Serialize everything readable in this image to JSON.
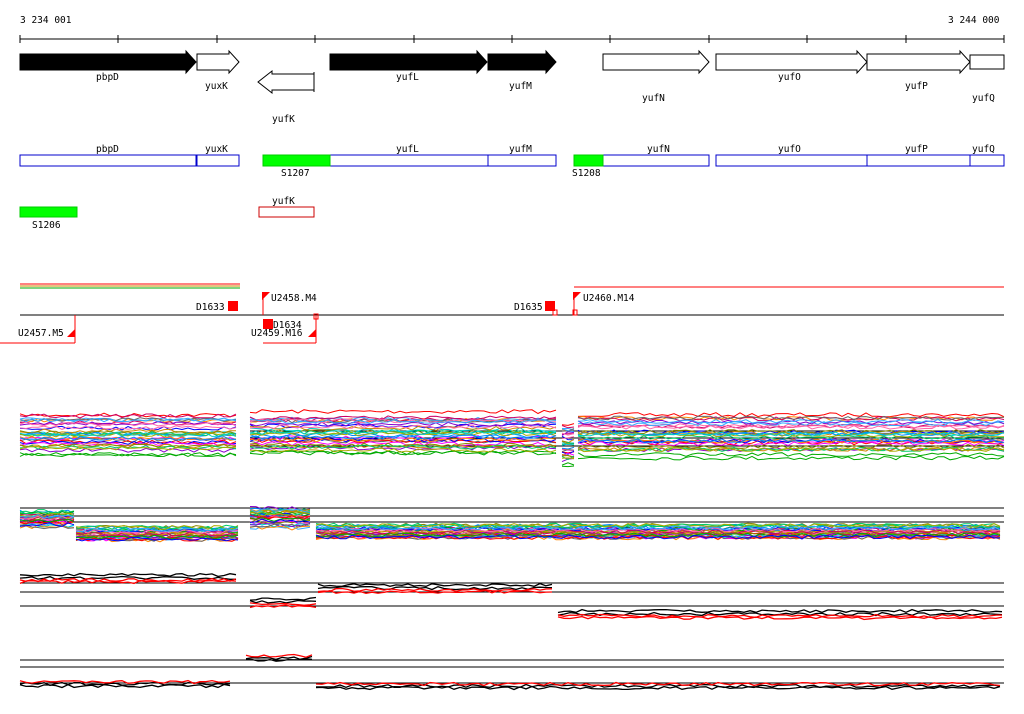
{
  "ruler": {
    "start_label": "3 234 001",
    "end_label": "3 244 000"
  },
  "genes_strand": [
    {
      "name": "pbpD",
      "strand": "+",
      "filled": true
    },
    {
      "name": "yuxK",
      "strand": "+",
      "filled": false
    },
    {
      "name": "yufK",
      "strand": "-",
      "filled": false
    },
    {
      "name": "yufL",
      "strand": "+",
      "filled": true
    },
    {
      "name": "yufM",
      "strand": "+",
      "filled": true
    },
    {
      "name": "yufN",
      "strand": "+",
      "filled": false
    },
    {
      "name": "yufO",
      "strand": "+",
      "filled": false
    },
    {
      "name": "yufP",
      "strand": "+",
      "filled": false
    },
    {
      "name": "yufQ",
      "strand": "+",
      "filled": false
    }
  ],
  "annotation_boxes": [
    {
      "name": "pbpD"
    },
    {
      "name": "yuxK"
    },
    {
      "name": "yufL"
    },
    {
      "name": "yufM"
    },
    {
      "name": "yufN"
    },
    {
      "name": "yufO"
    },
    {
      "name": "yufP"
    },
    {
      "name": "yufQ"
    }
  ],
  "regions": [
    "S1207",
    "S1208",
    "S1206"
  ],
  "minus_box": {
    "name": "yufK"
  },
  "features": [
    "D1633",
    "U2458.M4",
    "D1635",
    "U2460.M14",
    "U2457.M5",
    "D1634",
    "U2459.M16"
  ],
  "colors": {
    "green": "#00ff00",
    "blue": "#0000cc",
    "red": "#ff0000",
    "black": "#000000"
  },
  "expression_panels": [
    {
      "panel": 1,
      "style": "multicolor"
    },
    {
      "panel": 2,
      "style": "multicolor"
    },
    {
      "panel": 3,
      "style": "black-red"
    },
    {
      "panel": 4,
      "style": "black-red"
    }
  ]
}
